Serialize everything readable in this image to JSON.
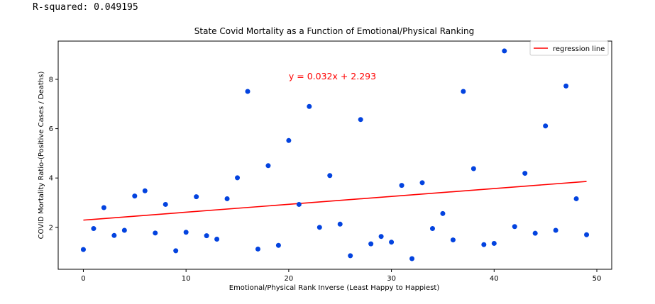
{
  "output_text": "R-squared: 0.049195",
  "chart_data": {
    "type": "scatter",
    "title": "State Covid Mortality as a Function of Emotional/Physical Ranking",
    "xlabel": "Emotional/Physical Rank Inverse (Least Happy to Happiest)",
    "ylabel": "COVID Mortality Ratio-(Positive Cases / Deaths)",
    "xlim": [
      -2.45,
      51.45
    ],
    "ylim": [
      0.3,
      9.55
    ],
    "xticks": [
      0,
      10,
      20,
      30,
      40,
      50
    ],
    "yticks": [
      2,
      4,
      6,
      8
    ],
    "grid": false,
    "legend": {
      "placement": "top-right",
      "entries": [
        "regression line"
      ]
    },
    "annotation": "y = 0.032x + 2.293",
    "annotation_anchor": {
      "x": 20,
      "y": 8.0
    },
    "colors": {
      "points": "#0343df",
      "line": "#ff0000",
      "annotation": "#ff0000"
    },
    "regression": {
      "slope": 0.032,
      "intercept": 2.293,
      "x_range": [
        0,
        49
      ]
    },
    "points": {
      "x": [
        0,
        1,
        2,
        3,
        4,
        5,
        6,
        7,
        8,
        9,
        10,
        11,
        12,
        13,
        14,
        15,
        16,
        17,
        18,
        19,
        20,
        21,
        22,
        23,
        24,
        25,
        26,
        27,
        28,
        29,
        30,
        31,
        32,
        33,
        34,
        35,
        36,
        37,
        38,
        39,
        40,
        41,
        42,
        43,
        44,
        45,
        46,
        47,
        48,
        49
      ],
      "y": [
        1.1,
        1.95,
        2.8,
        1.67,
        1.88,
        3.27,
        3.48,
        1.77,
        2.93,
        1.05,
        1.8,
        3.24,
        1.66,
        1.52,
        3.16,
        4.01,
        7.51,
        1.12,
        4.5,
        1.27,
        5.52,
        2.93,
        6.9,
        2.0,
        4.1,
        2.13,
        0.85,
        6.37,
        1.33,
        1.63,
        1.4,
        3.7,
        0.73,
        3.81,
        1.95,
        2.56,
        1.49,
        7.51,
        4.38,
        1.3,
        1.35,
        9.15,
        2.03,
        4.19,
        1.76,
        6.11,
        1.88,
        7.73,
        3.16,
        1.7
      ]
    }
  }
}
